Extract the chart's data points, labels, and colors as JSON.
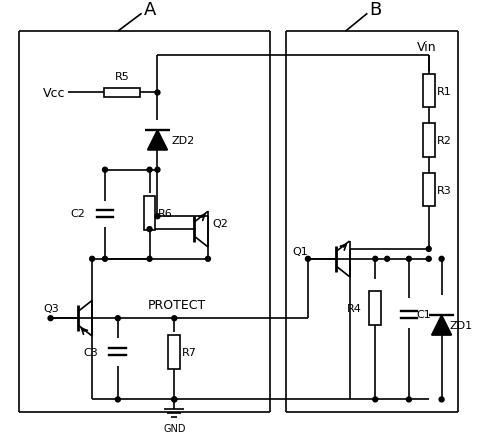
{
  "bg_color": "#ffffff",
  "line_color": "#000000",
  "title_A": "A",
  "title_B": "B",
  "label_Vcc": "Vcc",
  "label_Vin": "Vin",
  "label_GND": "GND",
  "label_PROTECT": "PROTECT",
  "label_R1": "R1",
  "label_R2": "R2",
  "label_R3": "R3",
  "label_R4": "R4",
  "label_R5": "R5",
  "label_R6": "R6",
  "label_R7": "R7",
  "label_C1": "C1",
  "label_C2": "C2",
  "label_C3": "C3",
  "label_Q1": "Q1",
  "label_Q2": "Q2",
  "label_Q3": "Q3",
  "label_ZD1": "ZD1",
  "label_ZD2": "ZD2",
  "figsize": [
    4.78,
    4.39
  ],
  "dpi": 100
}
